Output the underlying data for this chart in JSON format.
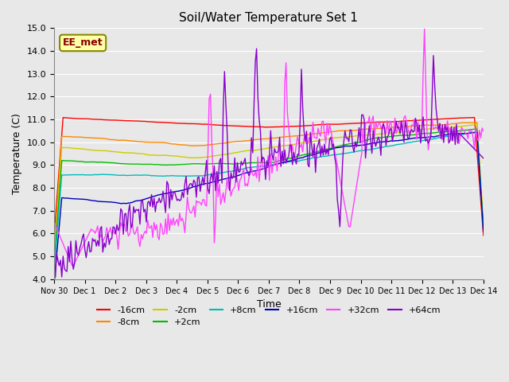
{
  "title": "Soil/Water Temperature Set 1",
  "xlabel": "Time",
  "ylabel": "Temperature (C)",
  "ylim": [
    4.0,
    15.0
  ],
  "yticks": [
    4.0,
    5.0,
    6.0,
    7.0,
    8.0,
    9.0,
    10.0,
    11.0,
    12.0,
    13.0,
    14.0,
    15.0
  ],
  "background_color": "#e8e8e8",
  "series_colors": {
    "-16cm": "#ff0000",
    "-8cm": "#ff8800",
    "-2cm": "#cccc00",
    "+2cm": "#00bb00",
    "+8cm": "#00bbbb",
    "+16cm": "#0000bb",
    "+32cm": "#ff44ff",
    "+64cm": "#8800cc"
  },
  "annotation_text": "EE_met",
  "annotation_box_color": "#ffffaa",
  "annotation_border_color": "#888800",
  "x_tick_labels": [
    "Nov 30",
    "Dec 1",
    "Dec 2",
    "Dec 3",
    "Dec 4",
    "Dec 5",
    "Dec 6",
    "Dec 7",
    "Dec 8",
    "Dec 9",
    "Dec 10",
    "Dec 11",
    "Dec 12",
    "Dec 13",
    "Dec 14"
  ],
  "num_points": 336
}
